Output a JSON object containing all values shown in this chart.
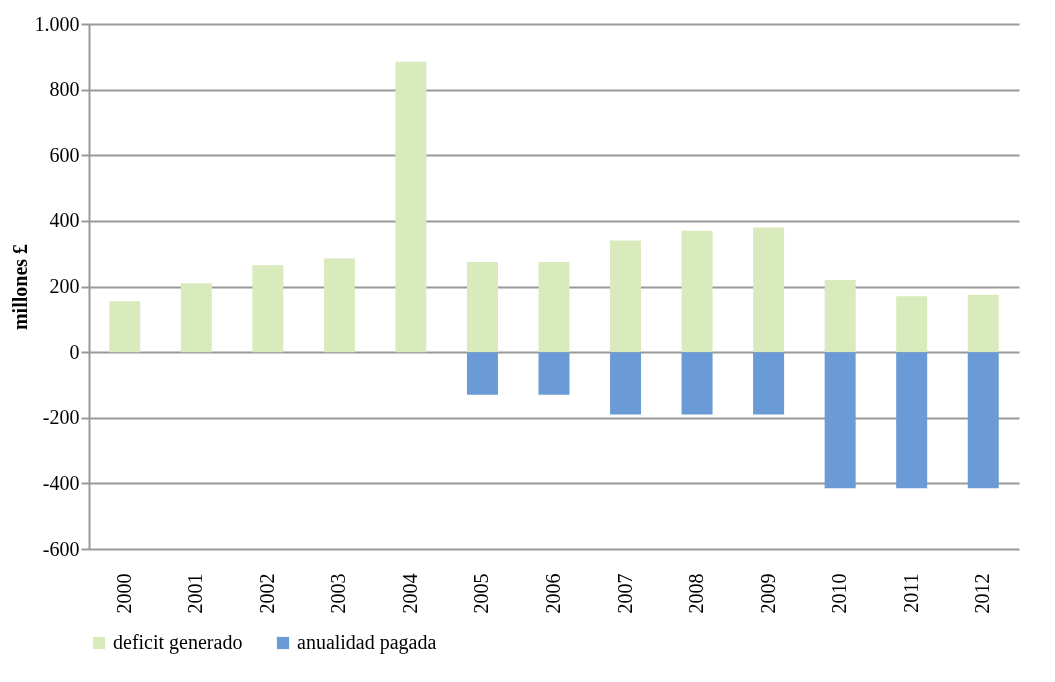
{
  "chart_data": {
    "type": "bar",
    "stacked": true,
    "ylabel": "millones £",
    "categories": [
      "2000",
      "2001",
      "2002",
      "2003",
      "2004",
      "2005",
      "2006",
      "2007",
      "2008",
      "2009",
      "2010",
      "2011",
      "2012"
    ],
    "series": [
      {
        "name": "deficit generado",
        "color": "#d9eabc",
        "values": [
          155,
          210,
          265,
          285,
          885,
          275,
          275,
          340,
          370,
          380,
          220,
          170,
          175
        ]
      },
      {
        "name": "anualidad pagada",
        "color": "#6b9bd6",
        "values": [
          0,
          0,
          0,
          0,
          0,
          -130,
          -130,
          -190,
          -190,
          -190,
          -415,
          -415,
          -415
        ]
      }
    ],
    "ylim": [
      -600,
      1000
    ],
    "yticks": [
      -600,
      -400,
      -200,
      0,
      200,
      400,
      600,
      800,
      {
        "value": 1000,
        "label": "1.000"
      }
    ],
    "grid": "y",
    "legend": "bottom"
  }
}
